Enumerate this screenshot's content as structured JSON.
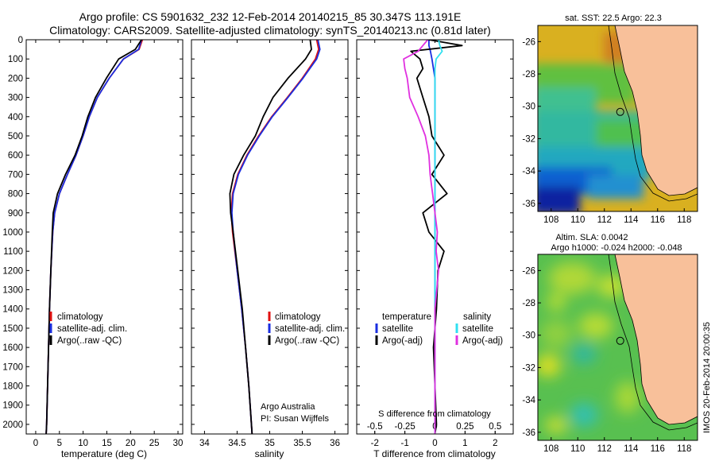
{
  "header": {
    "title_line1": "Argo profile: CS 5901632_232 12-Feb-2014 20140215_85 30.347S 113.191E",
    "title_line2": "Climatology: CARS2009. Satellite-adjusted climatology: synTS_20140213.nc (0.81d later)"
  },
  "colors": {
    "climatology": "#e01010",
    "satellite_adj": "#1a2ee0",
    "argo": "#000000",
    "salinity_satellite": "#30e0f0",
    "salinity_argo": "#e030e0",
    "land": "#f8c09a"
  },
  "chart_data": [
    {
      "type": "line",
      "panel": "temperature",
      "xlabel": "temperature (deg C)",
      "xlim": [
        -2,
        31
      ],
      "xticks": [
        "0",
        "5",
        "10",
        "15",
        "20",
        "25",
        "30"
      ],
      "ylim": [
        2050,
        0
      ],
      "yticks": [
        "0",
        "100",
        "200",
        "300",
        "400",
        "500",
        "600",
        "700",
        "800",
        "900",
        "1000",
        "1100",
        "1200",
        "1300",
        "1400",
        "1500",
        "1600",
        "1700",
        "1800",
        "1900",
        "2000"
      ],
      "depth": [
        0,
        50,
        100,
        200,
        300,
        400,
        500,
        600,
        700,
        800,
        900,
        1000,
        1200,
        1400,
        1600,
        1800,
        2000,
        2050
      ],
      "legend": [
        "climatology",
        "satellite-adj. clim.",
        "Argo(..raw -QC)"
      ],
      "series": [
        {
          "name": "climatology",
          "values": [
            22.5,
            21.8,
            18.5,
            15.5,
            13.0,
            11.3,
            10.0,
            8.5,
            6.7,
            5.0,
            4.0,
            3.6,
            3.2,
            2.9,
            2.7,
            2.5,
            2.3,
            2.2
          ]
        },
        {
          "name": "satellite-adj. clim.",
          "values": [
            22.3,
            21.7,
            18.5,
            15.5,
            13.0,
            11.3,
            10.0,
            8.5,
            6.7,
            5.0,
            4.0,
            3.6,
            3.2,
            2.9,
            2.7,
            2.5,
            2.3,
            2.2
          ]
        },
        {
          "name": "Argo(..raw -QC)",
          "values": [
            22.3,
            21.0,
            17.5,
            14.9,
            12.6,
            11.0,
            9.8,
            8.3,
            6.3,
            4.6,
            3.7,
            3.5,
            3.2,
            2.9,
            2.7,
            2.5,
            2.3,
            2.2
          ]
        }
      ]
    },
    {
      "type": "line",
      "panel": "salinity",
      "xlabel": "salinity",
      "xlim": [
        33.8,
        36.2
      ],
      "xticks": [
        "34",
        "34.5",
        "35",
        "35.5",
        "36"
      ],
      "ylim": [
        2050,
        0
      ],
      "legend": [
        "climatology",
        "satellite-adj. clim.",
        "Argo(..raw -QC)"
      ],
      "annotations": [
        "Argo Australia",
        "PI: Susan Wijffels"
      ],
      "depth": [
        0,
        50,
        100,
        200,
        300,
        400,
        500,
        600,
        700,
        800,
        900,
        1000,
        1200,
        1400,
        1600,
        1800,
        2000,
        2050
      ],
      "series": [
        {
          "name": "climatology",
          "values": [
            35.72,
            35.75,
            35.7,
            35.5,
            35.27,
            35.03,
            34.83,
            34.65,
            34.51,
            34.43,
            34.41,
            34.43,
            34.5,
            34.57,
            34.63,
            34.68,
            34.72,
            34.73
          ]
        },
        {
          "name": "satellite-adj. clim.",
          "values": [
            35.74,
            35.77,
            35.72,
            35.51,
            35.28,
            35.04,
            34.84,
            34.66,
            34.52,
            34.44,
            34.42,
            34.44,
            34.5,
            34.57,
            34.63,
            34.68,
            34.72,
            34.73
          ]
        },
        {
          "name": "Argo(..raw -QC)",
          "values": [
            35.62,
            35.64,
            35.55,
            35.28,
            35.05,
            34.9,
            34.78,
            34.6,
            34.45,
            34.39,
            34.4,
            34.44,
            34.51,
            34.58,
            34.63,
            34.68,
            34.72,
            34.73
          ]
        }
      ]
    },
    {
      "type": "line",
      "panel": "difference",
      "xlabel": "T difference from climatology",
      "xlabel_top": "S difference from climatology",
      "xlim": [
        -2.6,
        2.6
      ],
      "xticks": [
        "-2",
        "-1",
        "0",
        "1",
        "2"
      ],
      "xticks_top": [
        "-0.5",
        "-0.25",
        "0",
        "0.25",
        "0.5"
      ],
      "ylim": [
        2050,
        0
      ],
      "legend_temperature": {
        "heading": "temperature",
        "entries": [
          "satellite",
          "Argo(-adj)"
        ]
      },
      "legend_salinity": {
        "heading": "salinity",
        "entries": [
          "satellite",
          "Argo(-adj)"
        ]
      },
      "depth": [
        0,
        30,
        60,
        100,
        150,
        200,
        300,
        400,
        500,
        600,
        700,
        800,
        900,
        1000,
        1100,
        1200,
        1400,
        1600,
        1800,
        2000,
        2050
      ],
      "series": [
        {
          "name": "temperature satellite",
          "values": [
            -0.2,
            -0.2,
            -0.15,
            -0.1,
            -0.05,
            0,
            0,
            0,
            0,
            0,
            0,
            0,
            0,
            0,
            0,
            0,
            0,
            0,
            0,
            0,
            0
          ]
        },
        {
          "name": "temperature Argo(-adj)",
          "values": [
            -0.2,
            0.9,
            -0.8,
            -0.5,
            -0.4,
            -0.6,
            -0.4,
            -0.2,
            -0.1,
            0.3,
            -0.1,
            0.4,
            -0.4,
            -0.2,
            0.3,
            0.1,
            0.05,
            -0.05,
            0,
            0.05,
            0
          ]
        },
        {
          "name": "salinity satellite",
          "values": [
            0.03,
            0.04,
            0.06,
            0.01,
            0.0,
            0.0,
            0.0,
            0.0,
            0.0,
            0.0,
            0.0,
            0.0,
            0.0,
            0.0,
            0.0,
            0.0,
            0.0,
            0.0,
            0.0,
            0.0,
            0.0
          ]
        },
        {
          "name": "salinity Argo(-adj)",
          "values": [
            -0.06,
            -0.1,
            -0.14,
            -0.26,
            -0.25,
            -0.23,
            -0.21,
            -0.14,
            -0.08,
            -0.05,
            -0.04,
            -0.02,
            0.0,
            0.02,
            0.01,
            0.03,
            0.0,
            0.0,
            0.0,
            0.0,
            0.0
          ]
        }
      ]
    },
    {
      "type": "heatmap",
      "panel": "sst-map",
      "title": "sat. SST: 22.5 Argo: 22.3",
      "xlim": [
        107,
        119
      ],
      "ylim": [
        -36.5,
        -25
      ],
      "xticks": [
        "108",
        "110",
        "112",
        "114",
        "116",
        "118"
      ],
      "yticks": [
        "-26",
        "-28",
        "-30",
        "-32",
        "-34",
        "-36"
      ],
      "marker": {
        "lon": 113.191,
        "lat": -30.347
      }
    },
    {
      "type": "heatmap",
      "panel": "sla-map",
      "title": "Altim. SLA: 0.0042",
      "subtitle": "Argo h1000: -0.024 h2000: -0.048",
      "xlim": [
        107,
        119
      ],
      "ylim": [
        -36.5,
        -25
      ],
      "xticks": [
        "108",
        "110",
        "112",
        "114",
        "116",
        "118"
      ],
      "yticks": [
        "-26",
        "-28",
        "-30",
        "-32",
        "-34",
        "-36"
      ],
      "marker": {
        "lon": 113.191,
        "lat": -30.347
      }
    }
  ],
  "footer": {
    "stamp": "IMOS 20-Feb-2014 20:00:35"
  }
}
